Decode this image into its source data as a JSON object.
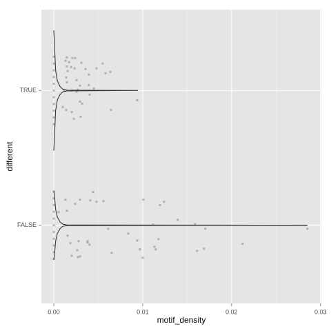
{
  "chart_data": {
    "type": "violin",
    "xlabel": "motif_density",
    "ylabel": "different",
    "xlim": [
      -0.0014,
      0.0301
    ],
    "xticks": [
      {
        "value": 0,
        "label": "0.00"
      },
      0.01,
      0.02,
      0.03
    ],
    "xminor": [
      0.005,
      0.015,
      0.025
    ],
    "ylim": [
      0.42,
      2.6
    ],
    "yticks": [
      {
        "value": 1,
        "label": "FALSE"
      },
      {
        "value": 2,
        "label": "TRUE"
      }
    ],
    "grid": true,
    "violin_color": "#333333",
    "violins": [
      {
        "y": 2,
        "x": [
          0,
          0.0001,
          0.0002,
          0.0004,
          0.0007,
          0.001,
          0.0015,
          0.00946
        ],
        "half_width": [
          0.446,
          0.3,
          0.15,
          0.07,
          0.03,
          0.01,
          0.003,
          0
        ]
      },
      {
        "y": 1,
        "x": [
          0,
          0.0001,
          0.0002,
          0.0004,
          0.0007,
          0.001,
          0.0015,
          0.02853
        ],
        "half_width": [
          0.256,
          0.2,
          0.12,
          0.06,
          0.025,
          0.008,
          0.002,
          0
        ]
      }
    ],
    "points": {
      "color": "#999999",
      "x": [
        0.00147,
        0.00132,
        0.00171,
        0.00209,
        0.0024,
        0.00147,
        0.00194,
        0.00233,
        0.00155,
        0.0031,
        0.00357,
        0.00395,
        0.00481,
        0.0055,
        0.00581,
        0.00636,
        0.0014,
        0.00256,
        0.00147,
        0.00295,
        0.00395,
        0.0045,
        0.00116,
        0.00202,
        0.00256,
        0.00271,
        0.00403,
        0.00295,
        0.00643,
        0.00938,
        0.00101,
        0.0014,
        0.00202,
        0.00302,
        0.00225,
        0.00318,
        0.00442,
        0.00132,
        0.00295,
        0.00411,
        0.0024,
        0.00481,
        0.00558,
        0.01008,
        0.0124,
        0.01194,
        0.00054,
        0.00147,
        0.01395,
        0.01116,
        0.01589,
        0.01705,
        0.00612,
        0.00837,
        0.02853,
        0.00155,
        0.00279,
        0.00186,
        0.0038,
        0.0038,
        0.00403,
        0.01178,
        0.02124,
        0.00938,
        0.00264,
        0.00651,
        0.00969,
        0.01147,
        0.0169,
        0.01612,
        0.00271,
        0.00295,
        0.01,
        0.00202,
        0.01132,
        0,
        0,
        0,
        0,
        0,
        0,
        0,
        0,
        0,
        0,
        0,
        0,
        0,
        0,
        0,
        0,
        0,
        0,
        0,
        0,
        0,
        0
      ],
      "y": [
        2.246,
        2.221,
        2.21,
        2.241,
        2.241,
        2.179,
        2.174,
        2.164,
        2.144,
        2.205,
        2.159,
        2.118,
        2.164,
        2.2,
        2.128,
        2.138,
        2.097,
        2.077,
        2.062,
        2.036,
        2.041,
        2.015,
        2,
        2,
        1.99,
        2.005,
        1.969,
        1.918,
        1.856,
        1.928,
        1.877,
        1.856,
        1.841,
        1.805,
        1.79,
        1.903,
        1.246,
        1.19,
        1.19,
        1.185,
        1.159,
        1.174,
        1.179,
        1.19,
        1.174,
        1.149,
        1.097,
        1.108,
        1.041,
        1.005,
        1.01,
        0.974,
        0.974,
        0.938,
        0.974,
        0.923,
        0.882,
        0.867,
        0.882,
        0.872,
        0.856,
        0.897,
        0.862,
        0.887,
        0.815,
        0.795,
        0.821,
        0.821,
        0.826,
        0.81,
        0.764,
        0.769,
        0.759,
        0.774,
        0.841,
        1.75,
        1.8,
        1.85,
        1.9,
        1.95,
        2,
        2.05,
        2.1,
        2.15,
        2.2,
        2.25,
        0.75,
        0.8,
        0.85,
        0.9,
        0.95,
        1,
        1.05,
        1.1,
        1.15,
        1.2,
        1.25
      ]
    }
  }
}
